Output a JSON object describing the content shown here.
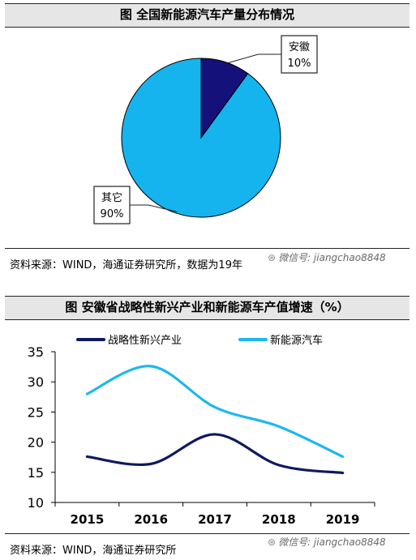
{
  "pie_title": "图  全国新能源汽车产量分布情况",
  "pie_source": "资料来源：WIND，海通证券研究所，数据为19年",
  "line_title": "图  安徽省战略性新兴产业和新能源车产值增速（%）",
  "line_source": "资料来源：WIND，海通证券研究所",
  "watermark": "微信号: jiangchao8848",
  "watermark_icon": "wechat-icon",
  "chart_data": [
    {
      "type": "pie",
      "slices": [
        {
          "name": "安徽",
          "value": 10,
          "label": "10%",
          "color": "#15117a"
        },
        {
          "name": "其它",
          "value": 90,
          "label": "90%",
          "color": "#16b4ee"
        }
      ]
    },
    {
      "type": "line",
      "categories": [
        "2015",
        "2016",
        "2017",
        "2018",
        "2019"
      ],
      "series": [
        {
          "name": "战略性新兴产业",
          "values": [
            17.6,
            16.4,
            21.3,
            16.2,
            14.9
          ],
          "color": "#0e1a5e"
        },
        {
          "name": "新能源汽车",
          "values": [
            28.0,
            32.6,
            25.8,
            22.6,
            17.6
          ],
          "color": "#1cb8ee"
        }
      ],
      "yticks": [
        "35",
        "30",
        "25",
        "20",
        "15",
        "10"
      ],
      "ylim": [
        10,
        35
      ],
      "legend": "top"
    }
  ]
}
